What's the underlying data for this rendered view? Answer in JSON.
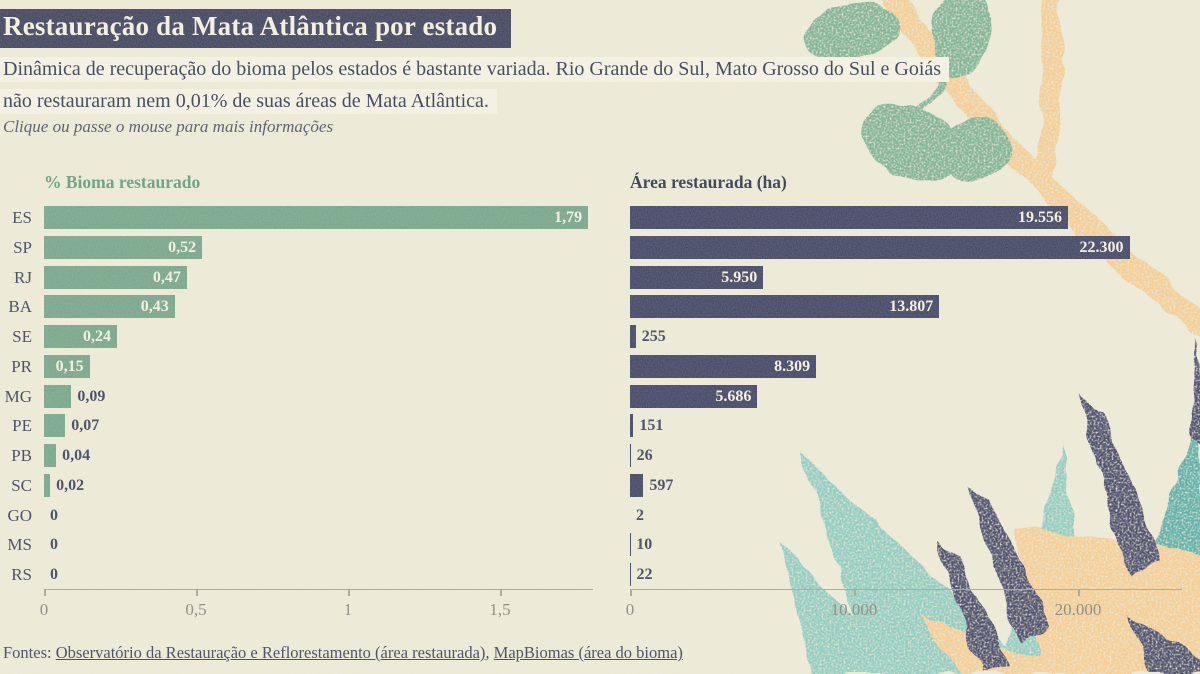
{
  "page": {
    "title": "Restauração da Mata Atlântica por estado",
    "subtitle_line1": "Dinâmica de recuperação do bioma pelos estados é bastante variada. Rio Grande do Sul, Mato Grosso do Sul e Goiás",
    "subtitle_line2": "não restauraram nem 0,01% de suas áreas de Mata Atlântica.",
    "hint": "Clique ou passe o mouse para mais informações",
    "footer_prefix": "Fontes: ",
    "footer_link1": "Observatório da Restauração e Reflorestamento (área restaurada)",
    "footer_separator": ", ",
    "footer_link2": "MapBiomas (área do bioma)"
  },
  "colors": {
    "background": "#ebe8d5",
    "title_box": "#3b3f5a",
    "title_text": "#f3efde",
    "green_bar": "#73a287",
    "green_header": "#5d9b79",
    "navy_bar": "#3d4160",
    "inside_value_text": "#f3efde",
    "outside_value_text": "#3b3f5a",
    "axis": "#a3a096",
    "tick_label": "#85847a",
    "deco_orange": "#f3c98d",
    "deco_leaf_green": "#76ac8d",
    "deco_teal_light": "#87c7bc",
    "deco_teal_dark": "#51a8a2",
    "deco_navy": "#3d4160"
  },
  "chart_data": {
    "type": "bar",
    "orientation": "horizontal",
    "categories": [
      "ES",
      "SP",
      "RJ",
      "BA",
      "SE",
      "PR",
      "MG",
      "PE",
      "PB",
      "SC",
      "GO",
      "MS",
      "RS"
    ],
    "series": [
      {
        "name": "% Bioma restaurado",
        "values": [
          1.79,
          0.52,
          0.47,
          0.43,
          0.24,
          0.15,
          0.09,
          0.07,
          0.04,
          0.02,
          0,
          0,
          0
        ],
        "labels": [
          "1,79",
          "0,52",
          "0,47",
          "0,43",
          "0,24",
          "0,15",
          "0,09",
          "0,07",
          "0,04",
          "0,02",
          "0",
          "0",
          "0"
        ],
        "axis_ticks": [
          "0",
          "0,5",
          "1",
          "1,5"
        ],
        "axis_tick_values": [
          0,
          0.5,
          1,
          1.5
        ],
        "xlim": [
          0,
          1.81
        ],
        "color": "#73a287",
        "inside_label_min_value": 0.12
      },
      {
        "name": "Área restaurada (ha)",
        "values": [
          19556,
          22300,
          5950,
          13807,
          255,
          8309,
          5686,
          151,
          26,
          597,
          2,
          10,
          22
        ],
        "labels": [
          "19.556",
          "22.300",
          "5.950",
          "13.807",
          "255",
          "8.309",
          "5.686",
          "151",
          "26",
          "597",
          "2",
          "10",
          "22"
        ],
        "axis_ticks": [
          "0",
          "10.000",
          "20.000"
        ],
        "axis_tick_values": [
          0,
          10000,
          20000
        ],
        "xlim": [
          0,
          24650
        ],
        "color": "#3d4160",
        "inside_label_min_value": 2500
      }
    ],
    "grid": false,
    "legend": false
  }
}
